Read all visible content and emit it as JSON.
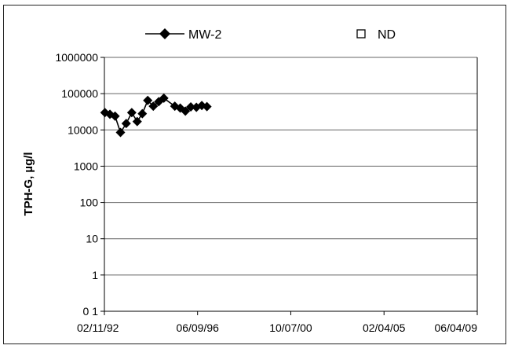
{
  "chart_data": {
    "type": "line",
    "title": "",
    "ylabel": "TPH-G, µg/l",
    "xlabel": "",
    "y_scale": "log",
    "ylim": [
      0.1,
      1000000
    ],
    "xlim": [
      "1992-02-11",
      "2009-06-04"
    ],
    "grid": "horizontal",
    "legend_position": "top",
    "y_tick_labels": [
      "1000000",
      "100000",
      "10000",
      "1000",
      "100",
      "10",
      "1",
      "0 1"
    ],
    "x_tick_labels": [
      "02/11/92",
      "06/09/96",
      "10/07/00",
      "02/04/05",
      "06/04/09"
    ],
    "x_ticks": [
      "1992-02-11",
      "1996-06-09",
      "2000-10-07",
      "2005-02-04",
      "2009-06-04"
    ],
    "series": [
      {
        "name": "MW-2",
        "marker": "diamond",
        "color": "#000000",
        "points": [
          {
            "x": "1992-02-20",
            "y": 30000
          },
          {
            "x": "1992-05-15",
            "y": 27000
          },
          {
            "x": "1992-08-10",
            "y": 24000
          },
          {
            "x": "1992-11-10",
            "y": 8500
          },
          {
            "x": "1993-02-15",
            "y": 15000
          },
          {
            "x": "1993-05-20",
            "y": 30000
          },
          {
            "x": "1993-08-20",
            "y": 17000
          },
          {
            "x": "1993-11-15",
            "y": 28000
          },
          {
            "x": "1994-02-15",
            "y": 65000
          },
          {
            "x": "1994-05-20",
            "y": 45000
          },
          {
            "x": "1994-08-20",
            "y": 60000
          },
          {
            "x": "1994-11-15",
            "y": 75000
          },
          {
            "x": "1995-05-20",
            "y": 45000
          },
          {
            "x": "1995-08-20",
            "y": 40000
          },
          {
            "x": "1995-11-15",
            "y": 33000
          },
          {
            "x": "1996-02-15",
            "y": 43000
          },
          {
            "x": "1996-05-20",
            "y": 42000
          },
          {
            "x": "1996-08-20",
            "y": 47000
          },
          {
            "x": "1996-11-15",
            "y": 44000
          }
        ]
      },
      {
        "name": "ND",
        "marker": "square-open",
        "color": "#000000",
        "points": []
      }
    ]
  }
}
